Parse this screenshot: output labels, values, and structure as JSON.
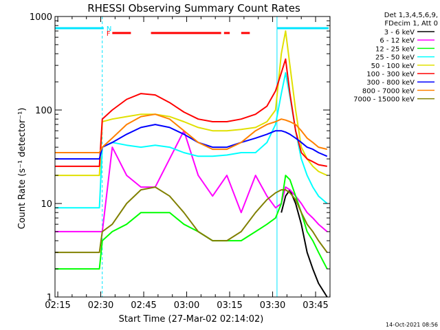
{
  "chart_data": {
    "type": "line",
    "title": "RHESSI Observing Summary Count Rates",
    "xlabel": "Start Time (27-Mar-02 02:14:02)",
    "ylabel": "Count Rate (s⁻¹ detector⁻¹)",
    "yscale": "log",
    "ylim": [
      1,
      1000
    ],
    "xlim_minutes": [
      0,
      96
    ],
    "x_ticks": [
      "02:15",
      "02:30",
      "02:45",
      "03:00",
      "03:15",
      "03:30",
      "03:45"
    ],
    "y_ticks": [
      "1",
      "10",
      "100",
      "1000"
    ],
    "grid": false,
    "legend_position": "right",
    "legend_header": [
      "Det 1,3,4,5,6,9,",
      "FDecim 1, Att 0"
    ],
    "timestamp": "14-Oct-2021 08:56",
    "flags": [
      {
        "label": "N",
        "color": "#00e5ff",
        "segments": [
          [
            0,
            17
          ],
          [
            77.5,
            95.5
          ]
        ]
      },
      {
        "label": "F",
        "color": "#ff0000",
        "segments": [
          [
            20,
            26.5
          ],
          [
            33.5,
            58
          ],
          [
            59,
            61
          ],
          [
            65,
            68
          ]
        ]
      }
    ],
    "vlines": [
      {
        "t": 16.5,
        "color": "#00e5ff",
        "style": "dashed"
      },
      {
        "t": 77.5,
        "color": "#00e5ff",
        "style": "solid"
      }
    ],
    "x": [
      0,
      5,
      10,
      15.5,
      16.5,
      20,
      25,
      30,
      35,
      40,
      45,
      50,
      55,
      60,
      65,
      70,
      74,
      77,
      79,
      80.5,
      82,
      84,
      86,
      88,
      90,
      92,
      95
    ],
    "series": [
      {
        "name": "3 - 6 keV",
        "color": "#000000",
        "values": [
          null,
          null,
          null,
          null,
          null,
          null,
          null,
          null,
          null,
          null,
          null,
          null,
          null,
          null,
          null,
          null,
          null,
          null,
          8,
          12,
          14,
          10,
          6,
          3,
          2,
          1.4,
          1
        ]
      },
      {
        "name": "6 - 12 keV",
        "color": "#ff00ff",
        "values": [
          5,
          5,
          5,
          5,
          5,
          40,
          20,
          15,
          15,
          30,
          60,
          20,
          12,
          20,
          8,
          20,
          12,
          9,
          10,
          15,
          14,
          12,
          10,
          8,
          7,
          6,
          5
        ]
      },
      {
        "name": "12 - 25 keV",
        "color": "#00ff00",
        "values": [
          2,
          2,
          2,
          2,
          4,
          5,
          6,
          8,
          8,
          8,
          6,
          5,
          4,
          4,
          4,
          5,
          6,
          7,
          10,
          20,
          18,
          12,
          8,
          5,
          4,
          3,
          2
        ]
      },
      {
        "name": "25 - 50 keV",
        "color": "#00ffff",
        "values": [
          9,
          9,
          9,
          9,
          40,
          45,
          42,
          40,
          42,
          40,
          35,
          32,
          32,
          33,
          35,
          35,
          45,
          70,
          150,
          250,
          140,
          60,
          30,
          20,
          15,
          12,
          10
        ]
      },
      {
        "name": "50 - 100 keV",
        "color": "#e0e000",
        "values": [
          20,
          20,
          20,
          20,
          75,
          80,
          85,
          90,
          90,
          85,
          75,
          65,
          60,
          60,
          62,
          65,
          75,
          100,
          400,
          700,
          300,
          100,
          40,
          30,
          25,
          22,
          20
        ]
      },
      {
        "name": "100 - 300 keV",
        "color": "#ff0000",
        "values": [
          25,
          25,
          25,
          25,
          80,
          100,
          130,
          150,
          145,
          120,
          95,
          80,
          75,
          75,
          80,
          90,
          110,
          160,
          250,
          350,
          150,
          60,
          35,
          30,
          28,
          26,
          25
        ]
      },
      {
        "name": "300 - 800 keV",
        "color": "#0000ff",
        "values": [
          30,
          30,
          30,
          30,
          40,
          45,
          55,
          65,
          70,
          65,
          55,
          45,
          40,
          40,
          45,
          50,
          55,
          60,
          60,
          58,
          55,
          50,
          45,
          40,
          38,
          35,
          32
        ]
      },
      {
        "name": "800 - 7000 keV",
        "color": "#ff8000",
        "values": [
          35,
          35,
          35,
          35,
          40,
          50,
          70,
          85,
          90,
          80,
          60,
          45,
          38,
          38,
          45,
          60,
          70,
          75,
          80,
          78,
          75,
          70,
          60,
          50,
          45,
          40,
          38
        ]
      },
      {
        "name": "7000 - 15000 keV",
        "color": "#808000",
        "values": [
          3,
          3,
          3,
          3,
          5,
          6,
          10,
          14,
          15,
          12,
          8,
          5,
          4,
          4,
          5,
          8,
          11,
          13,
          14,
          14,
          13,
          11,
          8,
          6,
          5,
          4,
          3
        ]
      }
    ]
  }
}
